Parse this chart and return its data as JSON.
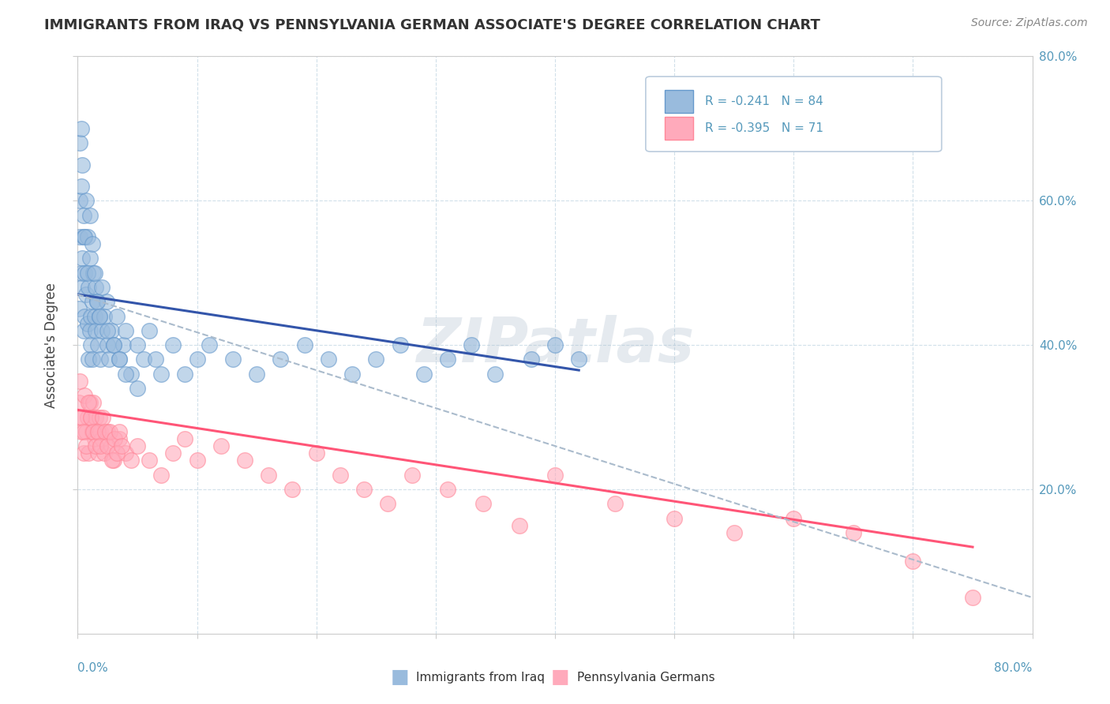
{
  "title": "IMMIGRANTS FROM IRAQ VS PENNSYLVANIA GERMAN ASSOCIATE'S DEGREE CORRELATION CHART",
  "source": "Source: ZipAtlas.com",
  "ylabel": "Associate's Degree",
  "right_ytick_vals": [
    0.2,
    0.4,
    0.6,
    0.8
  ],
  "right_ytick_labels": [
    "20.0%",
    "40.0%",
    "60.0%",
    "80.0%"
  ],
  "legend_blue_label": "Immigrants from Iraq",
  "legend_pink_label": "Pennsylvania Germans",
  "legend_blue_r": "R = -0.241",
  "legend_blue_n": "N = 84",
  "legend_pink_r": "R = -0.395",
  "legend_pink_n": "N = 71",
  "blue_color": "#99BBDD",
  "blue_edge": "#6699CC",
  "pink_color": "#FFAABB",
  "pink_edge": "#FF8899",
  "trend_blue_color": "#3355AA",
  "trend_pink_color": "#FF5577",
  "dash_color": "#AABBCC",
  "watermark": "ZIPatlas",
  "watermark_color": "#AABBCC",
  "xlim": [
    0.0,
    0.8
  ],
  "ylim": [
    0.0,
    0.8
  ],
  "blue_x": [
    0.001,
    0.002,
    0.002,
    0.003,
    0.003,
    0.004,
    0.004,
    0.005,
    0.005,
    0.005,
    0.006,
    0.006,
    0.007,
    0.007,
    0.008,
    0.008,
    0.009,
    0.009,
    0.01,
    0.01,
    0.011,
    0.011,
    0.012,
    0.012,
    0.013,
    0.014,
    0.015,
    0.015,
    0.016,
    0.017,
    0.018,
    0.019,
    0.02,
    0.022,
    0.024,
    0.025,
    0.026,
    0.028,
    0.03,
    0.033,
    0.035,
    0.038,
    0.04,
    0.045,
    0.05,
    0.055,
    0.06,
    0.065,
    0.07,
    0.08,
    0.09,
    0.1,
    0.11,
    0.13,
    0.15,
    0.17,
    0.19,
    0.21,
    0.23,
    0.25,
    0.27,
    0.29,
    0.31,
    0.33,
    0.35,
    0.38,
    0.4,
    0.42,
    0.002,
    0.003,
    0.004,
    0.006,
    0.008,
    0.01,
    0.012,
    0.014,
    0.016,
    0.018,
    0.02,
    0.025,
    0.03,
    0.035,
    0.04,
    0.05
  ],
  "blue_y": [
    0.45,
    0.6,
    0.55,
    0.62,
    0.5,
    0.48,
    0.52,
    0.58,
    0.42,
    0.55,
    0.5,
    0.44,
    0.47,
    0.6,
    0.43,
    0.55,
    0.48,
    0.38,
    0.42,
    0.52,
    0.44,
    0.4,
    0.46,
    0.38,
    0.5,
    0.44,
    0.48,
    0.42,
    0.46,
    0.4,
    0.44,
    0.38,
    0.42,
    0.44,
    0.46,
    0.4,
    0.38,
    0.42,
    0.4,
    0.44,
    0.38,
    0.4,
    0.42,
    0.36,
    0.4,
    0.38,
    0.42,
    0.38,
    0.36,
    0.4,
    0.36,
    0.38,
    0.4,
    0.38,
    0.36,
    0.38,
    0.4,
    0.38,
    0.36,
    0.38,
    0.4,
    0.36,
    0.38,
    0.4,
    0.36,
    0.38,
    0.4,
    0.38,
    0.68,
    0.7,
    0.65,
    0.55,
    0.5,
    0.58,
    0.54,
    0.5,
    0.46,
    0.44,
    0.48,
    0.42,
    0.4,
    0.38,
    0.36,
    0.34
  ],
  "pink_x": [
    0.001,
    0.002,
    0.003,
    0.004,
    0.005,
    0.006,
    0.007,
    0.008,
    0.009,
    0.01,
    0.011,
    0.012,
    0.013,
    0.014,
    0.015,
    0.016,
    0.017,
    0.018,
    0.019,
    0.02,
    0.022,
    0.025,
    0.028,
    0.03,
    0.035,
    0.04,
    0.045,
    0.05,
    0.06,
    0.07,
    0.08,
    0.09,
    0.1,
    0.12,
    0.14,
    0.16,
    0.18,
    0.2,
    0.22,
    0.24,
    0.26,
    0.28,
    0.31,
    0.34,
    0.37,
    0.4,
    0.45,
    0.5,
    0.55,
    0.6,
    0.65,
    0.7,
    0.75,
    0.003,
    0.005,
    0.007,
    0.009,
    0.011,
    0.013,
    0.015,
    0.017,
    0.019,
    0.021,
    0.023,
    0.025,
    0.027,
    0.029,
    0.031,
    0.033,
    0.035,
    0.037
  ],
  "pink_y": [
    0.32,
    0.35,
    0.28,
    0.3,
    0.25,
    0.33,
    0.28,
    0.3,
    0.25,
    0.32,
    0.3,
    0.28,
    0.32,
    0.27,
    0.3,
    0.28,
    0.25,
    0.3,
    0.28,
    0.27,
    0.25,
    0.28,
    0.26,
    0.24,
    0.27,
    0.25,
    0.24,
    0.26,
    0.24,
    0.22,
    0.25,
    0.27,
    0.24,
    0.26,
    0.24,
    0.22,
    0.2,
    0.25,
    0.22,
    0.2,
    0.18,
    0.22,
    0.2,
    0.18,
    0.15,
    0.22,
    0.18,
    0.16,
    0.14,
    0.16,
    0.14,
    0.1,
    0.05,
    0.3,
    0.28,
    0.26,
    0.32,
    0.3,
    0.28,
    0.26,
    0.28,
    0.26,
    0.3,
    0.28,
    0.26,
    0.28,
    0.24,
    0.27,
    0.25,
    0.28,
    0.26
  ],
  "blue_trend_x": [
    0.0,
    0.42
  ],
  "blue_trend_y": [
    0.47,
    0.365
  ],
  "pink_trend_x": [
    0.0,
    0.75
  ],
  "pink_trend_y": [
    0.31,
    0.12
  ],
  "dash_trend_x": [
    0.0,
    0.8
  ],
  "dash_trend_y": [
    0.47,
    0.05
  ]
}
